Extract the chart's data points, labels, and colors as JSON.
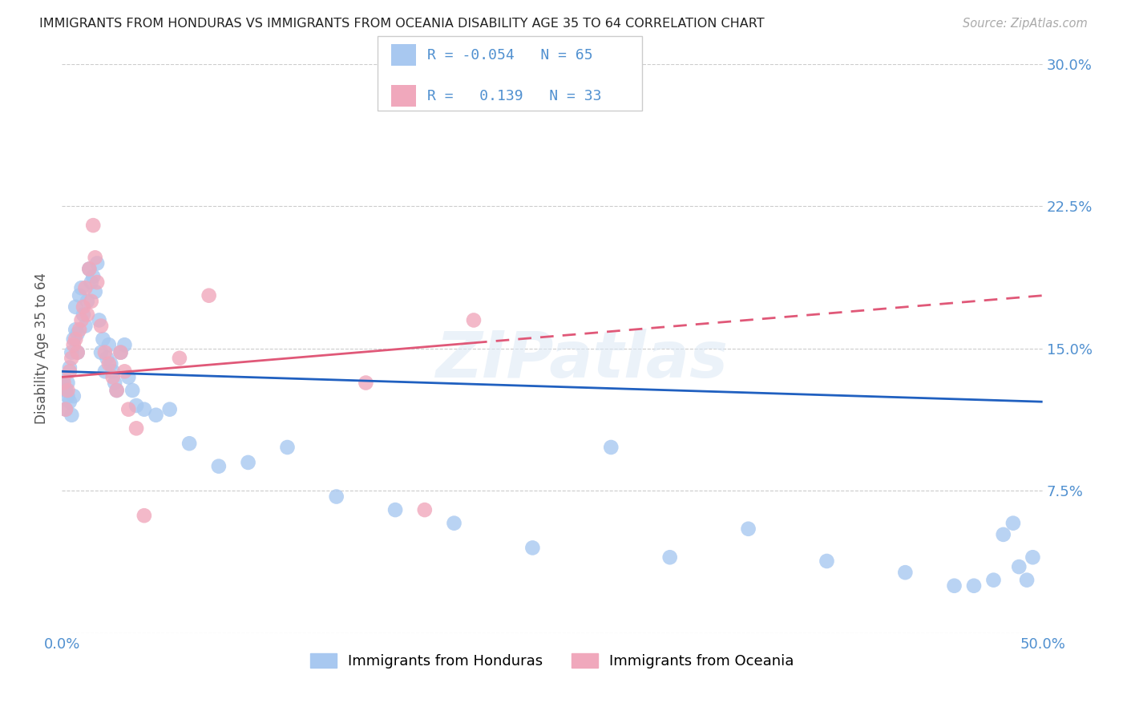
{
  "title": "IMMIGRANTS FROM HONDURAS VS IMMIGRANTS FROM OCEANIA DISABILITY AGE 35 TO 64 CORRELATION CHART",
  "source": "Source: ZipAtlas.com",
  "ylabel": "Disability Age 35 to 64",
  "xlim": [
    0.0,
    0.5
  ],
  "ylim": [
    0.0,
    0.3
  ],
  "yticks": [
    0.0,
    0.075,
    0.15,
    0.225,
    0.3
  ],
  "yticklabels": [
    "",
    "7.5%",
    "15.0%",
    "22.5%",
    "30.0%"
  ],
  "color_blue": "#a8c8f0",
  "color_pink": "#f0a8bc",
  "line_blue": "#2060c0",
  "line_pink": "#e05878",
  "axis_color": "#5090d0",
  "blue_line_y0": 0.138,
  "blue_line_y1": 0.122,
  "pink_line_y0": 0.135,
  "pink_line_y1": 0.178,
  "blue_x": [
    0.001,
    0.001,
    0.002,
    0.002,
    0.003,
    0.003,
    0.004,
    0.004,
    0.005,
    0.005,
    0.006,
    0.006,
    0.007,
    0.007,
    0.008,
    0.008,
    0.009,
    0.01,
    0.011,
    0.012,
    0.013,
    0.014,
    0.015,
    0.016,
    0.017,
    0.018,
    0.019,
    0.02,
    0.021,
    0.022,
    0.023,
    0.024,
    0.025,
    0.026,
    0.027,
    0.028,
    0.03,
    0.032,
    0.034,
    0.036,
    0.038,
    0.042,
    0.048,
    0.055,
    0.065,
    0.08,
    0.095,
    0.115,
    0.14,
    0.17,
    0.2,
    0.24,
    0.28,
    0.31,
    0.35,
    0.39,
    0.43,
    0.455,
    0.465,
    0.475,
    0.48,
    0.485,
    0.488,
    0.492,
    0.495
  ],
  "blue_y": [
    0.135,
    0.13,
    0.128,
    0.118,
    0.132,
    0.125,
    0.14,
    0.122,
    0.148,
    0.115,
    0.155,
    0.125,
    0.16,
    0.172,
    0.158,
    0.148,
    0.178,
    0.182,
    0.168,
    0.162,
    0.175,
    0.192,
    0.185,
    0.188,
    0.18,
    0.195,
    0.165,
    0.148,
    0.155,
    0.138,
    0.145,
    0.152,
    0.142,
    0.138,
    0.132,
    0.128,
    0.148,
    0.152,
    0.135,
    0.128,
    0.12,
    0.118,
    0.115,
    0.118,
    0.1,
    0.088,
    0.09,
    0.098,
    0.072,
    0.065,
    0.058,
    0.045,
    0.098,
    0.04,
    0.055,
    0.038,
    0.032,
    0.025,
    0.025,
    0.028,
    0.052,
    0.058,
    0.035,
    0.028,
    0.04
  ],
  "pink_x": [
    0.001,
    0.002,
    0.003,
    0.004,
    0.005,
    0.006,
    0.007,
    0.008,
    0.009,
    0.01,
    0.011,
    0.012,
    0.013,
    0.014,
    0.015,
    0.016,
    0.017,
    0.018,
    0.02,
    0.022,
    0.024,
    0.026,
    0.028,
    0.03,
    0.032,
    0.034,
    0.038,
    0.042,
    0.06,
    0.075,
    0.155,
    0.185,
    0.21
  ],
  "pink_y": [
    0.132,
    0.118,
    0.128,
    0.138,
    0.145,
    0.152,
    0.155,
    0.148,
    0.16,
    0.165,
    0.172,
    0.182,
    0.168,
    0.192,
    0.175,
    0.215,
    0.198,
    0.185,
    0.162,
    0.148,
    0.142,
    0.135,
    0.128,
    0.148,
    0.138,
    0.118,
    0.108,
    0.062,
    0.145,
    0.178,
    0.132,
    0.065,
    0.165
  ]
}
